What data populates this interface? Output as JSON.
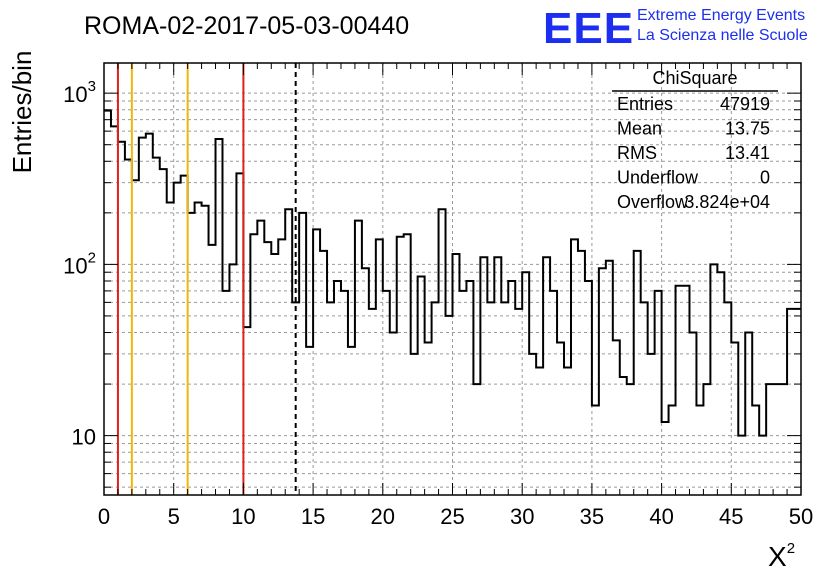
{
  "chart_data": {
    "type": "histogram",
    "title": "ROMA-02-2017-05-03-00440",
    "xlabel": "X²",
    "ylabel": "Entries/bin",
    "logo": {
      "text": "EEE",
      "line1": "Extreme Energy Events",
      "line2": "La Scienza nelle Scuole"
    },
    "xlim": [
      0,
      50
    ],
    "ylim": [
      4.5,
      1500
    ],
    "y_scale": "log",
    "grid": true,
    "bin_width": 0.5,
    "x_ticks": [
      "0",
      "5",
      "10",
      "15",
      "20",
      "25",
      "30",
      "35",
      "40",
      "45",
      "50"
    ],
    "y_tick_labels": [
      {
        "value": 10,
        "label": "10"
      },
      {
        "value": 100,
        "label": "10",
        "exp": "2"
      },
      {
        "value": 1000,
        "label": "10",
        "exp": "3"
      }
    ],
    "values": [
      790,
      640,
      520,
      410,
      310,
      550,
      580,
      420,
      360,
      230,
      300,
      330,
      200,
      230,
      220,
      130,
      540,
      70,
      100,
      340,
      43,
      150,
      180,
      135,
      115,
      140,
      210,
      60,
      200,
      33,
      160,
      120,
      60,
      80,
      70,
      33,
      180,
      95,
      55,
      140,
      70,
      40,
      145,
      150,
      30,
      85,
      35,
      60,
      210,
      50,
      115,
      70,
      80,
      20,
      110,
      60,
      110,
      60,
      80,
      55,
      90,
      30,
      25,
      110,
      70,
      35,
      25,
      140,
      120,
      80,
      15,
      95,
      105,
      36,
      22,
      20,
      120,
      60,
      30,
      70,
      12,
      15,
      75,
      75,
      40,
      15,
      20,
      100,
      90,
      60,
      35,
      10,
      40,
      15,
      10,
      20,
      20,
      20,
      55,
      55
    ],
    "vertical_lines": [
      {
        "x": 1,
        "color": "#e0201b",
        "style": "solid"
      },
      {
        "x": 2,
        "color": "#f2b705",
        "style": "solid"
      },
      {
        "x": 6,
        "color": "#f2b705",
        "style": "solid"
      },
      {
        "x": 10,
        "color": "#e0201b",
        "style": "solid"
      },
      {
        "x": 13.75,
        "color": "#000000",
        "style": "dashed"
      }
    ],
    "stats": {
      "title": "ChiSquare",
      "rows": [
        {
          "label": "Entries",
          "value": "47919"
        },
        {
          "label": "Mean",
          "value": "13.75"
        },
        {
          "label": "RMS",
          "value": "13.41"
        },
        {
          "label": "Underflow",
          "value": "0"
        },
        {
          "label": "Overflow",
          "value": "3.824e+04"
        }
      ]
    },
    "colors": {
      "logo_blue": "#1c2ef0",
      "histogram": "#000000",
      "grid": "#9a9a9a"
    }
  }
}
